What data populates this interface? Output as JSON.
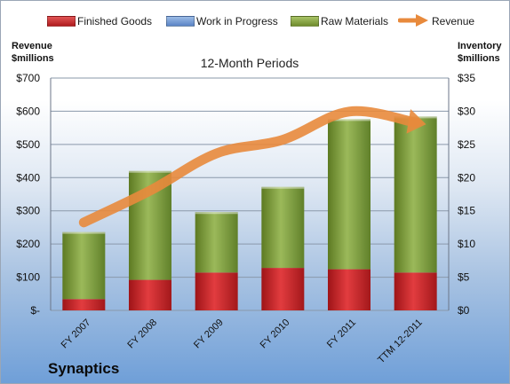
{
  "legend": [
    {
      "label": "Finished Goods",
      "color": "#c8262a"
    },
    {
      "label": "Work in Progress",
      "color": "#6d94cf"
    },
    {
      "label": "Raw Materials",
      "color": "#7d9b3a"
    },
    {
      "label": "Revenue",
      "color": "#e88a3c"
    }
  ],
  "left_axis_title": "Revenue\n$millions",
  "right_axis_title": "Inventory\n$millions",
  "company": "Synaptics",
  "chart_data": {
    "type": "bar",
    "title": "12-Month Periods",
    "categories": [
      "FY 2007",
      "FY 2008",
      "FY 2009",
      "FY 2010",
      "FY 2011",
      "TTM 12-2011"
    ],
    "series": [
      {
        "name": "Finished Goods",
        "axis": "right",
        "values": [
          1.7,
          4.6,
          5.7,
          6.4,
          6.2,
          5.7
        ],
        "color": "#c8262a"
      },
      {
        "name": "Work in Progress",
        "axis": "right",
        "values": [
          0,
          0,
          0,
          0,
          0,
          0
        ],
        "color": "#6d94cf"
      },
      {
        "name": "Raw Materials",
        "axis": "right",
        "values": [
          10.1,
          16.4,
          9.1,
          12.2,
          22.6,
          23.5
        ],
        "color": "#7d9b3a"
      },
      {
        "name": "Revenue",
        "type": "line",
        "axis": "left",
        "values": [
          265,
          361,
          473,
          514,
          599,
          566
        ],
        "color": "#e88a3c"
      }
    ],
    "y_left": {
      "min": 0,
      "max": 700,
      "step": 100,
      "ticks": [
        "$-",
        "$100",
        "$200",
        "$300",
        "$400",
        "$500",
        "$600",
        "$700"
      ]
    },
    "y_right": {
      "min": 0,
      "max": 35,
      "step": 5,
      "ticks": [
        "$0",
        "$5",
        "$10",
        "$15",
        "$20",
        "$25",
        "$30",
        "$35"
      ]
    },
    "stacked": true,
    "grid": true,
    "legend_position": "top"
  }
}
